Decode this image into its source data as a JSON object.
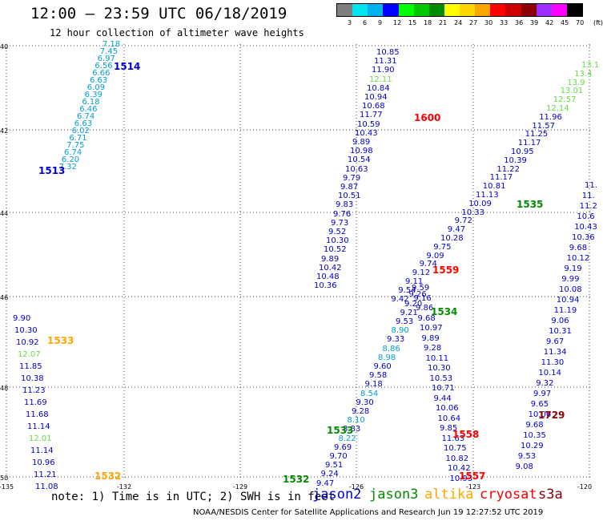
{
  "header": {
    "title": "12:00 – 23:59 UTC 06/18/2019",
    "subtitle": "12 hour collection of altimeter wave heights"
  },
  "legend": {
    "colors": [
      "#7f7f7f",
      "#00e5ee",
      "#00b2ee",
      "#0000ff",
      "#00ff00",
      "#00c800",
      "#008b00",
      "#ffff00",
      "#ffd700",
      "#ffa500",
      "#ff0000",
      "#cd0000",
      "#8b0000",
      "#9b30ff",
      "#ff00ff",
      "#000000"
    ],
    "ticks": [
      "3",
      "6",
      "9",
      "12",
      "15",
      "18",
      "21",
      "24",
      "27",
      "30",
      "33",
      "36",
      "39",
      "42",
      "45",
      "70",
      "(ft)"
    ]
  },
  "axes": {
    "y_ticks": [
      "40",
      "42",
      "44",
      "46",
      "48",
      "50"
    ],
    "x_ticks": [
      "-135",
      "-132",
      "-129",
      "-126",
      "-123",
      "-120"
    ]
  },
  "colors": {
    "jason2": "#0000cd",
    "jason3": "#008b00",
    "altika": "#ffa500",
    "cryosat": "#ff0000",
    "s3a": "#8b0000",
    "swh_low": "#00a0d0",
    "swh_mid": "#66dd44"
  },
  "tracks": [
    {
      "values": [
        "7.18",
        "7.45",
        "6.97",
        "6.56",
        "6.66",
        "6.63",
        "6.09",
        "6.39",
        "6.18",
        "6.46",
        "6.74",
        "6.63",
        "6.02",
        "6.71",
        "7.75",
        "6.74",
        "6.20",
        "7.32"
      ],
      "colors": [
        "swh_low"
      ]
    },
    {
      "values": [
        "9.90",
        "10.30",
        "10.92",
        "12.07",
        "11.85",
        "10.38",
        "11.23",
        "11.69",
        "11.68",
        "11.14",
        "12.01",
        "11.14",
        "10.96",
        "11.21",
        "11.08"
      ],
      "colors": [
        "jason2",
        "jason2",
        "jason2",
        "swh_mid",
        "jason2",
        "jason2",
        "jason2",
        "jason2",
        "jason2",
        "jason2",
        "swh_mid",
        "jason2",
        "jason2",
        "jason2",
        "jason2"
      ]
    },
    {
      "values": [
        "10.85",
        "11.31",
        "11.90",
        "12.11",
        "10.84",
        "10.94",
        "10.68",
        "11.77",
        "10.59",
        "10.43",
        "9.89",
        "10.98",
        "10.54",
        "10.63",
        "9.79",
        "9.87",
        "10.51",
        "9.83",
        "9.76",
        "9.73",
        "9.52",
        "10.30",
        "10.52",
        "9.89",
        "10.42",
        "10.48",
        "10.36",
        "9.26",
        "9.20",
        "9.21",
        "9.53",
        "8.90",
        "9.33",
        "8.86",
        "8.98",
        "9.60",
        "9.58",
        "9.18",
        "8.54",
        "9.30",
        "9.28",
        "8.10",
        "8.83",
        "8.22",
        "9.69",
        "9.70",
        "9.51",
        "9.24",
        "9.47"
      ],
      "colors": [
        "jason2",
        "jason2",
        "jason2",
        "swh_mid",
        "jason2",
        "jason2",
        "jason2",
        "jason2",
        "jason2",
        "jason2",
        "jason2",
        "jason2",
        "jason2",
        "jason2",
        "jason2",
        "jason2",
        "jason2",
        "jason2",
        "jason2",
        "jason2",
        "jason2",
        "jason2",
        "jason2",
        "jason2",
        "jason2",
        "jason2",
        "jason2",
        "jason2",
        "jason2",
        "jason2",
        "jason2",
        "swh_low",
        "jason2",
        "swh_low",
        "swh_low",
        "jason2",
        "jason2",
        "jason2",
        "swh_low",
        "jason2",
        "jason2",
        "swh_low",
        "jason2",
        "swh_low",
        "jason2",
        "jason2",
        "jason2",
        "jason2",
        "jason2"
      ]
    },
    {
      "values": [
        "9.59",
        "9.16",
        "9.86",
        "9.68",
        "10.97",
        "9.89",
        "9.28",
        "10.11",
        "10.30",
        "10.53",
        "10.71",
        "9.44",
        "10.06",
        "10.64",
        "9.85",
        "11.63",
        "10.75",
        "10.82",
        "10.42",
        "10.93"
      ],
      "colors": [
        "jason2"
      ]
    },
    {
      "values": [
        "13.1",
        "13.4",
        "13.9",
        "13.01",
        "12.57",
        "12.14",
        "11.96",
        "11.57",
        "11.25",
        "11.17",
        "10.95",
        "10.39",
        "11.22",
        "11.17",
        "10.81",
        "11.13",
        "10.09",
        "10.33",
        "9.72",
        "9.47",
        "10.28",
        "9.75",
        "9.09",
        "9.74",
        "9.12",
        "9.11",
        "9.54",
        "9.42"
      ],
      "colors": [
        "swh_mid",
        "swh_mid",
        "swh_mid",
        "swh_mid",
        "swh_mid",
        "swh_mid",
        "jason2",
        "jason2",
        "jason2",
        "jason2",
        "jason2",
        "jason2",
        "jason2",
        "jason2",
        "jason2",
        "jason2",
        "jason2",
        "jason2",
        "jason2",
        "jason2",
        "jason2",
        "jason2",
        "jason2",
        "jason2",
        "jason2",
        "jason2",
        "jason2",
        "jason2"
      ]
    },
    {
      "values": [
        "11.",
        "11.",
        "11.2",
        "10.6",
        "10.43",
        "10.36",
        "9.68",
        "10.12",
        "9.19",
        "9.99",
        "10.08",
        "10.94",
        "11.19",
        "9.06",
        "10.31",
        "9.67",
        "11.34",
        "11.30",
        "10.14",
        "9.32",
        "9.97",
        "9.65",
        "10.06",
        "9.68",
        "10.35",
        "10.29",
        "9.53",
        "9.08"
      ],
      "colors": [
        "jason2"
      ]
    }
  ],
  "passes": [
    {
      "label": "1514",
      "sat": "jason2"
    },
    {
      "label": "1513",
      "sat": "jason2"
    },
    {
      "label": "1533",
      "sat": "altika"
    },
    {
      "label": "1532",
      "sat": "altika"
    },
    {
      "label": "1600",
      "sat": "cryosat"
    },
    {
      "label": "1535",
      "sat": "jason3"
    },
    {
      "label": "1559",
      "sat": "cryosat"
    },
    {
      "label": "1534",
      "sat": "jason3"
    },
    {
      "label": "1533",
      "sat": "jason3"
    },
    {
      "label": "1532",
      "sat": "jason3"
    },
    {
      "label": "1558",
      "sat": "cryosat"
    },
    {
      "label": "1557",
      "sat": "cryosat"
    },
    {
      "label": "1729",
      "sat": "s3a"
    }
  ],
  "note": "note: 1) Time is in UTC; 2) SWH is in feet",
  "satellites": {
    "jason2": "jason2",
    "jason3": "jason3",
    "altika": "altika",
    "cryosat": "cryosat",
    "s3a": "s3a"
  },
  "footer": "NOAA/NESDIS Center for Satellite Applications and Research   Jun 19 12:27:52 UTC 2019"
}
